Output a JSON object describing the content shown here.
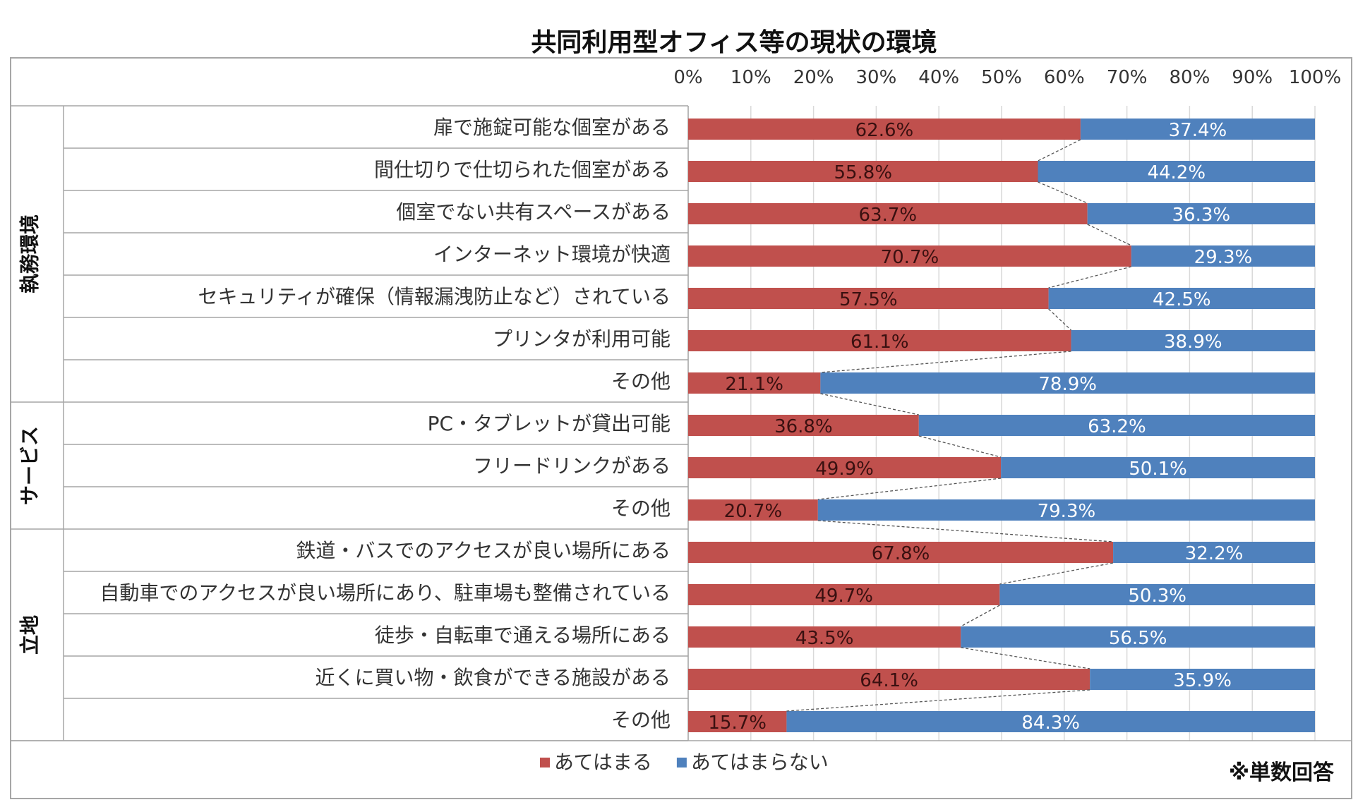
{
  "chart_data": {
    "type": "bar",
    "orientation": "horizontal",
    "stacked": "100%",
    "title": "共同利用型オフィス等の現状の環境",
    "x_ticks": [
      "0%",
      "10%",
      "20%",
      "30%",
      "40%",
      "50%",
      "60%",
      "70%",
      "80%",
      "90%",
      "100%"
    ],
    "xlim": [
      0,
      100
    ],
    "groups": [
      {
        "label": "執務環境",
        "start": 0,
        "count": 7
      },
      {
        "label": "サービス",
        "start": 7,
        "count": 3
      },
      {
        "label": "立地",
        "start": 10,
        "count": 5
      }
    ],
    "categories": [
      "扉で施錠可能な個室がある",
      "間仕切りで仕切られた個室がある",
      "個室でない共有スペースがある",
      "インターネット環境が快適",
      "セキュリティが確保（情報漏洩防止など）されている",
      "プリンタが利用可能",
      "その他",
      "PC・タブレットが貸出可能",
      "フリードリンクがある",
      "その他",
      "鉄道・バスでのアクセスが良い場所にある",
      "自動車でのアクセスが良い場所にあり、駐車場も整備されている",
      "徒歩・自転車で通える場所にある",
      "近くに買い物・飲食ができる施設がある",
      "その他"
    ],
    "series": [
      {
        "name": "あてはまる",
        "color": "#c0504d",
        "values": [
          62.6,
          55.8,
          63.7,
          70.7,
          57.5,
          61.1,
          21.1,
          36.8,
          49.9,
          20.7,
          67.8,
          49.7,
          43.5,
          64.1,
          15.7
        ],
        "labels": [
          "62.6%",
          "55.8%",
          "63.7%",
          "70.7%",
          "57.5%",
          "61.1%",
          "21.1%",
          "36.8%",
          "49.9%",
          "20.7%",
          "67.8%",
          "49.7%",
          "43.5%",
          "64.1%",
          "15.7%"
        ]
      },
      {
        "name": "あてはまらない",
        "color": "#4f81bd",
        "values": [
          37.4,
          44.2,
          36.3,
          29.3,
          42.5,
          38.9,
          78.9,
          63.2,
          50.1,
          79.3,
          32.2,
          50.3,
          56.5,
          35.9,
          84.3
        ],
        "labels": [
          "37.4%",
          "44.2%",
          "36.3%",
          "29.3%",
          "42.5%",
          "38.9%",
          "78.9%",
          "63.2%",
          "50.1%",
          "79.3%",
          "32.2%",
          "50.3%",
          "56.5%",
          "35.9%",
          "84.3%"
        ]
      }
    ],
    "series_lines": "dashed connectors between adjacent bar boundaries",
    "legend": "bottom-center",
    "note": "※単数回答"
  }
}
